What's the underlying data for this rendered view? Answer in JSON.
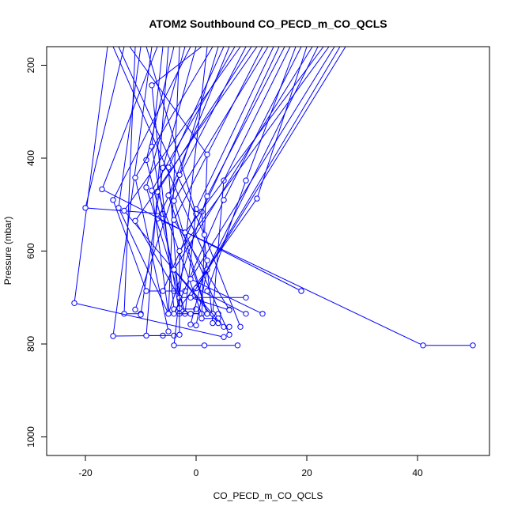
{
  "chart_data": {
    "type": "line",
    "title": "ATOM2 Southbound CO_PECD_m_CO_QCLS",
    "xlabel": "CO_PECD_m_CO_QCLS",
    "ylabel": "Pressure (mbar)",
    "xlim": [
      -27,
      53
    ],
    "ylim": [
      1040,
      160
    ],
    "y_reversed": true,
    "grid": false,
    "series_color": "#0000ff",
    "marker": "open-circle",
    "x_ticks": [
      -20,
      0,
      20,
      40
    ],
    "x_tick_labels": [
      "-20",
      "0",
      "20",
      "40"
    ],
    "y_ticks": [
      200,
      400,
      600,
      800,
      1000
    ],
    "y_tick_labels": [
      "200",
      "400",
      "600",
      "800",
      "1000"
    ],
    "series": [
      {
        "points": [
          [
            -11,
            160
          ],
          [
            -13,
            735
          ],
          [
            -10,
            735
          ]
        ]
      },
      {
        "points": [
          [
            -3,
            160
          ],
          [
            -5,
            735
          ],
          [
            -1,
            735
          ]
        ]
      },
      {
        "points": [
          [
            -16,
            160
          ],
          [
            -22,
            712
          ],
          [
            5,
            785
          ]
        ]
      },
      {
        "points": [
          [
            -8,
            160
          ],
          [
            -15,
            783
          ],
          [
            -6,
            782
          ]
        ]
      },
      {
        "points": [
          [
            -5,
            160
          ],
          [
            -9,
            782
          ],
          [
            -4,
            782
          ]
        ]
      },
      {
        "points": [
          [
            2,
            160
          ],
          [
            -4,
            803
          ],
          [
            1.5,
            803
          ],
          [
            7.5,
            803
          ]
        ]
      },
      {
        "points": [
          [
            9,
            160
          ],
          [
            -7,
            530
          ],
          [
            41,
            803
          ],
          [
            50,
            803
          ]
        ]
      },
      {
        "points": [
          [
            -7,
            160
          ],
          [
            -17,
            467
          ],
          [
            19,
            686
          ]
        ]
      },
      {
        "points": [
          [
            -13,
            160
          ],
          [
            -20,
            507
          ],
          [
            -6,
            520
          ]
        ]
      },
      {
        "points": [
          [
            -10,
            160
          ],
          [
            -14,
            507
          ],
          [
            -5,
            735
          ]
        ]
      },
      {
        "points": [
          [
            0,
            160
          ],
          [
            -6,
            421
          ],
          [
            -10,
            737
          ]
        ]
      },
      {
        "points": [
          [
            -4,
            160
          ],
          [
            -9,
            404
          ],
          [
            -2,
            735
          ]
        ]
      },
      {
        "points": [
          [
            -6,
            160
          ],
          [
            -8,
            375
          ],
          [
            -3,
            735
          ]
        ]
      },
      {
        "points": [
          [
            1,
            160
          ],
          [
            -8,
            243
          ],
          [
            -4,
            725
          ],
          [
            0,
            725
          ]
        ]
      },
      {
        "points": [
          [
            4,
            160
          ],
          [
            -3,
            436
          ],
          [
            -11,
            726
          ]
        ]
      },
      {
        "points": [
          [
            5,
            160
          ],
          [
            -5,
            420
          ],
          [
            -3,
            735
          ],
          [
            3,
            735
          ]
        ]
      },
      {
        "points": [
          [
            6,
            160
          ],
          [
            -5,
            480
          ],
          [
            2,
            735
          ]
        ]
      },
      {
        "points": [
          [
            -2,
            160
          ],
          [
            -9,
            463
          ],
          [
            -2,
            734
          ],
          [
            2,
            735
          ]
        ]
      },
      {
        "points": [
          [
            7,
            160
          ],
          [
            -8,
            470
          ],
          [
            -5,
            735
          ]
        ]
      },
      {
        "points": [
          [
            10,
            160
          ],
          [
            -7,
            472
          ],
          [
            1,
            735
          ]
        ]
      },
      {
        "points": [
          [
            3,
            160
          ],
          [
            -11,
            442
          ],
          [
            -5,
            773
          ]
        ]
      },
      {
        "points": [
          [
            -1,
            160
          ],
          [
            -15,
            490
          ],
          [
            -9,
            686
          ],
          [
            -4,
            686
          ]
        ]
      },
      {
        "points": [
          [
            8,
            160
          ],
          [
            -13,
            513
          ],
          [
            4,
            755
          ]
        ]
      },
      {
        "points": [
          [
            11,
            160
          ],
          [
            -11,
            535
          ],
          [
            -3,
            700
          ],
          [
            9,
            700
          ]
        ]
      },
      {
        "points": [
          [
            12,
            160
          ],
          [
            -4,
            533
          ],
          [
            6,
            726
          ]
        ]
      },
      {
        "points": [
          [
            13,
            160
          ],
          [
            -4,
            492
          ],
          [
            2,
            735
          ],
          [
            4,
            735
          ]
        ]
      },
      {
        "points": [
          [
            14,
            160
          ],
          [
            0,
            510
          ],
          [
            -2,
            735
          ]
        ]
      },
      {
        "points": [
          [
            15,
            160
          ],
          [
            1,
            515
          ],
          [
            3,
            755
          ]
        ]
      },
      {
        "points": [
          [
            -9,
            160
          ],
          [
            0,
            520
          ],
          [
            -6,
            686
          ],
          [
            -2,
            686
          ]
        ]
      },
      {
        "points": [
          [
            -12,
            160
          ],
          [
            2,
            392
          ],
          [
            1,
            745
          ],
          [
            4,
            745
          ]
        ]
      },
      {
        "points": [
          [
            16,
            160
          ],
          [
            2,
            482
          ],
          [
            -5,
            735
          ]
        ]
      },
      {
        "points": [
          [
            17,
            160
          ],
          [
            5,
            448
          ],
          [
            3,
            735
          ]
        ]
      },
      {
        "points": [
          [
            18,
            160
          ],
          [
            9,
            448
          ],
          [
            2,
            686
          ]
        ]
      },
      {
        "points": [
          [
            19,
            160
          ],
          [
            5,
            490
          ],
          [
            -4,
            735
          ],
          [
            -1,
            735
          ]
        ]
      },
      {
        "points": [
          [
            20,
            160
          ],
          [
            11,
            487
          ],
          [
            -3,
            723
          ]
        ]
      },
      {
        "points": [
          [
            -14,
            160
          ],
          [
            1.5,
            565
          ],
          [
            8,
            763
          ]
        ]
      },
      {
        "points": [
          [
            -15,
            160
          ],
          [
            2,
            620
          ],
          [
            -1,
            758
          ]
        ]
      },
      {
        "points": [
          [
            21,
            160
          ],
          [
            -4,
            640
          ],
          [
            5,
            763
          ],
          [
            6,
            763
          ]
        ]
      },
      {
        "points": [
          [
            22,
            160
          ],
          [
            2,
            640
          ],
          [
            0,
            760
          ]
        ]
      },
      {
        "points": [
          [
            23,
            160
          ],
          [
            -2,
            560
          ],
          [
            6,
            780
          ]
        ]
      },
      {
        "points": [
          [
            24,
            160
          ],
          [
            -3,
            600
          ],
          [
            -3,
            780
          ]
        ]
      },
      {
        "points": [
          [
            25,
            160
          ],
          [
            -1,
            660
          ],
          [
            12,
            735
          ]
        ]
      },
      {
        "points": [
          [
            26,
            160
          ],
          [
            0,
            680
          ],
          [
            9,
            735
          ]
        ]
      },
      {
        "points": [
          [
            27,
            160
          ],
          [
            -1,
            700
          ],
          [
            6,
            727
          ]
        ]
      }
    ]
  }
}
